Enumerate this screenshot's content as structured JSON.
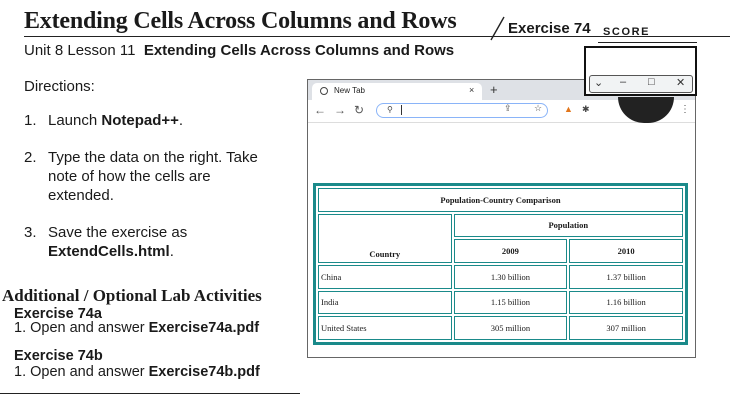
{
  "header": {
    "title": "Extending Cells Across Columns and Rows",
    "exercise_label": "Exercise 74",
    "score_label": "Score",
    "subtitle_prefix": "Unit 8 Lesson 11",
    "subtitle_bold": "Extending Cells Across Columns and Rows"
  },
  "directions": {
    "heading": "Directions:",
    "steps": [
      {
        "num": "1.",
        "lines": [
          "Launch ",
          "Notepad++",
          "."
        ]
      },
      {
        "num": "2.",
        "lines": [
          "Type the data on the right. Take",
          "note of how the cells are",
          "extended."
        ]
      },
      {
        "num": "3.",
        "lines": [
          "Save the exercise as",
          "ExtendCells.html",
          "."
        ]
      }
    ]
  },
  "additional": {
    "heading": "Additional / Optional Lab Activities",
    "items": [
      {
        "title": "Exercise 74a",
        "prefix": "1. Open and answer ",
        "file": "Exercise74a.pdf"
      },
      {
        "title": "Exercise 74b",
        "prefix": "1. Open and answer ",
        "file": "Exercise74b.pdf"
      }
    ]
  },
  "browser": {
    "tab_title": "New Tab",
    "tab_close": "×",
    "new_tab": "+",
    "window_controls": {
      "chevron": "⌄",
      "minimize": "–",
      "maximize": "□",
      "close": "✕"
    }
  },
  "table": {
    "caption": "Population-Country Comparison",
    "group_header": "Population",
    "row_header": "Country",
    "years": [
      "2009",
      "2010"
    ],
    "rows": [
      {
        "country": "China",
        "y2009": "1.30 billion",
        "y2010": "1.37 billion"
      },
      {
        "country": "India",
        "y2009": "1.15 billion",
        "y2010": "1.16 billion"
      },
      {
        "country": "United States",
        "y2009": "305 million",
        "y2010": "307 million"
      }
    ]
  },
  "colors": {
    "accent": "#1a8a8a"
  }
}
